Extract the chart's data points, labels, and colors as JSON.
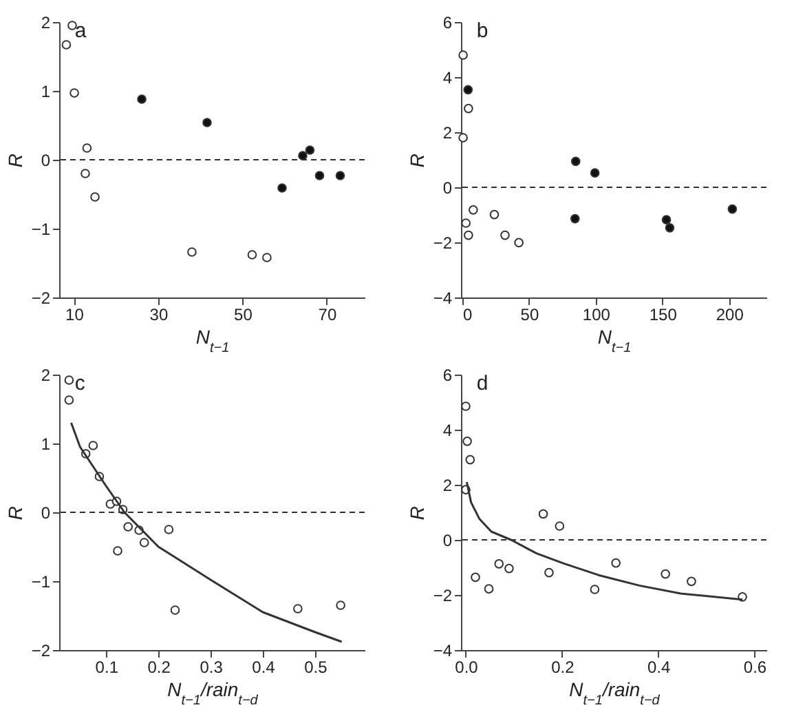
{
  "chart_data": [
    {
      "type": "scatter",
      "title": "a",
      "xlabel": "N$_{t−1}$",
      "ylabel": "R",
      "marker": "circle",
      "xlim": [
        6.5,
        79
      ],
      "xticks": [
        10,
        30,
        50,
        70
      ],
      "ylim": [
        -2,
        2
      ],
      "yticks": [
        -2,
        -1,
        0,
        1,
        2
      ],
      "ref_lines": [
        {
          "axis": "y",
          "value": 0,
          "line_style": "dashed"
        }
      ],
      "series": [
        {
          "color": "#ffffff",
          "x": [
            8.2,
            9.6,
            10.1,
            13.1,
            12.7,
            15,
            38,
            52.3,
            55.8
          ],
          "values": [
            1.67,
            1.95,
            0.97,
            0.17,
            -0.2,
            -0.54,
            -1.34,
            -1.38,
            -1.42
          ]
        },
        {
          "color": "#111111",
          "x": [
            26.1,
            41.6,
            59.4,
            64.3,
            66,
            68.3,
            73.2
          ],
          "values": [
            0.88,
            0.54,
            -0.41,
            0.06,
            0.14,
            -0.23,
            -0.23
          ]
        }
      ]
    },
    {
      "type": "scatter",
      "title": "b",
      "xlabel": "N$_{t−1}$",
      "ylabel": "R",
      "marker": "circle",
      "xlim": [
        -1,
        228
      ],
      "xticks": [
        0,
        50,
        100,
        150,
        200
      ],
      "ylim": [
        -4,
        6
      ],
      "yticks": [
        -4,
        -2,
        0,
        2,
        4,
        6
      ],
      "ref_lines": [
        {
          "axis": "y",
          "value": 0,
          "line_style": "dashed"
        }
      ],
      "series": [
        {
          "color": "#ffffff",
          "x": [
            0.6,
            0.6,
            4.6,
            2.7,
            4.6,
            8.2,
            24,
            32,
            42.4
          ],
          "values": [
            4.8,
            1.8,
            2.86,
            -1.3,
            -1.74,
            -0.82,
            -0.99,
            -1.74,
            -2.01
          ]
        },
        {
          "color": "#111111",
          "x": [
            4.3,
            85,
            99.4,
            84.5,
            153,
            155.5,
            202.4
          ],
          "values": [
            3.54,
            0.94,
            0.52,
            -1.14,
            -1.18,
            -1.47,
            -0.79
          ]
        }
      ]
    },
    {
      "type": "scatter",
      "title": "c",
      "xlabel": "N$_{t−1}$/rain$_{t−d}$",
      "ylabel": "R",
      "marker": "circle",
      "xlim": [
        0.01,
        0.595
      ],
      "xticks": [
        0.1,
        0.2,
        0.3,
        0.4,
        0.5
      ],
      "ylim": [
        -2,
        2
      ],
      "yticks": [
        -2,
        -1,
        0,
        1,
        2
      ],
      "ref_lines": [
        {
          "axis": "y",
          "value": 0,
          "line_style": "dashed"
        }
      ],
      "series": [
        {
          "color": "#ffffff",
          "x": [
            0.029,
            0.029,
            0.061,
            0.075,
            0.087,
            0.108,
            0.12,
            0.132,
            0.142,
            0.163,
            0.173,
            0.122,
            0.22,
            0.232,
            0.467,
            0.549
          ],
          "values": [
            1.92,
            1.63,
            0.85,
            0.97,
            0.52,
            0.12,
            0.16,
            0.04,
            -0.21,
            -0.26,
            -0.44,
            -0.56,
            -0.25,
            -1.42,
            -1.4,
            -1.35
          ]
        },
        {
          "type": "line",
          "marker": "none",
          "color": "#333333",
          "x": [
            0.033,
            0.05,
            0.1,
            0.135,
            0.2,
            0.3,
            0.4,
            0.5,
            0.551
          ],
          "values": [
            1.3,
            0.95,
            0.38,
            0,
            -0.5,
            -0.98,
            -1.45,
            -1.74,
            -1.88
          ]
        }
      ]
    },
    {
      "type": "scatter",
      "title": "d",
      "xlabel": "N$_{t−1}$/rain$_{t−d}$",
      "ylabel": "R",
      "marker": "circle",
      "xlim": [
        -0.01,
        0.625
      ],
      "xticks": [
        {
          "value": 0,
          "label": "0.0"
        },
        0.2,
        0.4,
        0.6
      ],
      "ylim": [
        -4,
        6
      ],
      "yticks": [
        -4,
        -2,
        0,
        2,
        4,
        6
      ],
      "ref_lines": [
        {
          "axis": "y",
          "value": 0,
          "line_style": "dashed"
        }
      ],
      "series": [
        {
          "color": "#ffffff",
          "x": [
            0,
            0.003,
            0.009,
            0,
            0.02,
            0.048,
            0.069,
            0.09,
            0.161,
            0.173,
            0.195,
            0.268,
            0.312,
            0.415,
            0.469,
            0.575
          ],
          "values": [
            4.85,
            3.58,
            2.91,
            1.82,
            -1.36,
            -1.78,
            -0.87,
            -1.04,
            0.94,
            -1.19,
            0.5,
            -1.8,
            -0.84,
            -1.24,
            -1.51,
            -2.07
          ]
        },
        {
          "type": "line",
          "marker": "none",
          "color": "#333333",
          "x": [
            0.002,
            0.011,
            0.028,
            0.053,
            0.094,
            0.147,
            0.204,
            0.276,
            0.361,
            0.447,
            0.575
          ],
          "values": [
            2.1,
            1.36,
            0.77,
            0.3,
            0,
            -0.49,
            -0.86,
            -1.28,
            -1.66,
            -1.95,
            -2.17
          ]
        }
      ]
    }
  ]
}
